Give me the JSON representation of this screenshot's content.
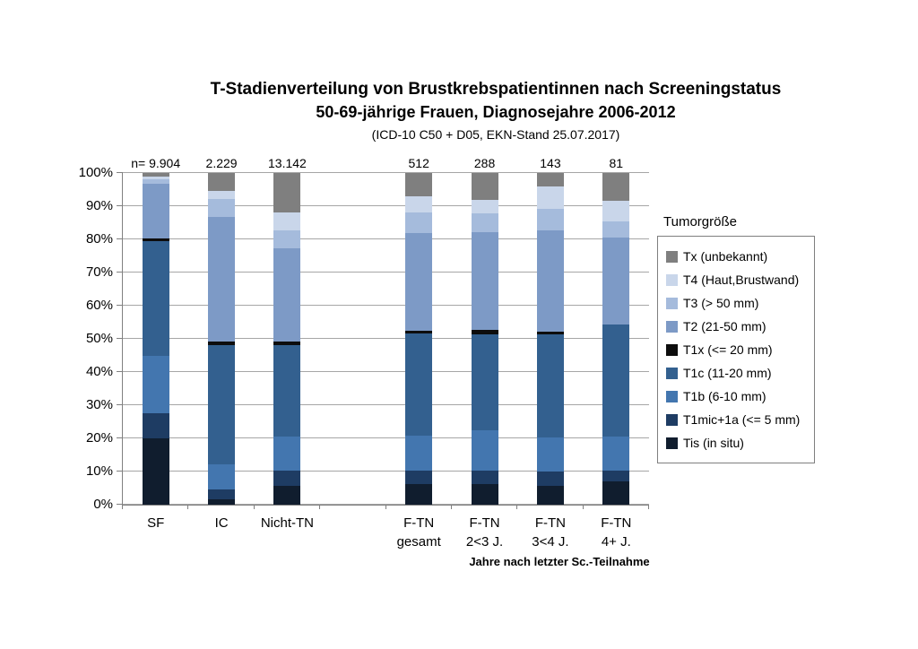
{
  "title": {
    "line1": "T-Stadienverteilung  von Brustkrebspatientinnen nach Screeningstatus",
    "line2": "50-69-jährige Frauen, Diagnosejahre 2006-2012",
    "line3": "(ICD-10 C50 + D05, EKN-Stand 25.07.2017)"
  },
  "chart_data": {
    "type": "bar",
    "stacked": true,
    "value_unit": "percent",
    "ylim": [
      0,
      100
    ],
    "ytick_step": 10,
    "ytick_suffix": "%",
    "grid": true,
    "legend_position": "right",
    "legend_title": "Tumorgröße",
    "xaxis_note": "Jahre nach letzter Sc.-Teilnahme",
    "categories": [
      {
        "label": "SF",
        "sublabel": "",
        "n_label": "n= 9.904",
        "spacer": false
      },
      {
        "label": "IC",
        "sublabel": "",
        "n_label": "2.229",
        "spacer": false
      },
      {
        "label": "Nicht-TN",
        "sublabel": "",
        "n_label": "13.142",
        "spacer": false
      },
      {
        "label": "",
        "sublabel": "",
        "n_label": "",
        "spacer": true
      },
      {
        "label": "F-TN",
        "sublabel": "gesamt",
        "n_label": "512",
        "spacer": false
      },
      {
        "label": "F-TN",
        "sublabel": "2<3 J.",
        "n_label": "288",
        "spacer": false
      },
      {
        "label": "F-TN",
        "sublabel": "3<4 J.",
        "n_label": "143",
        "spacer": false
      },
      {
        "label": "F-TN",
        "sublabel": "4+ J.",
        "n_label": "81",
        "spacer": false
      }
    ],
    "series_bottom_to_top": [
      {
        "name": "Tis (in situ)",
        "color": "#101D2E",
        "values": [
          20.0,
          1.6,
          5.8,
          6.2,
          6.2,
          5.8,
          7.0
        ]
      },
      {
        "name": "T1mic+1a (<= 5 mm)",
        "color": "#1E3C63",
        "values": [
          7.5,
          3.0,
          4.5,
          4.0,
          4.1,
          4.3,
          3.3
        ]
      },
      {
        "name": "T1b (6-10 mm)",
        "color": "#4376AF",
        "values": [
          17.5,
          7.6,
          10.3,
          10.6,
          12.1,
          10.1,
          10.3
        ]
      },
      {
        "name": "T1c (11-20 mm)",
        "color": "#33608F",
        "values": [
          34.5,
          36.0,
          27.6,
          30.7,
          29.0,
          31.1,
          33.8
        ]
      },
      {
        "name": "T1x (<= 20 mm)",
        "color": "#0D0D0D",
        "values": [
          0.8,
          1.0,
          0.9,
          0.9,
          1.2,
          0.9,
          0.0
        ]
      },
      {
        "name": "T2 (21-50 mm)",
        "color": "#7D9AC6",
        "values": [
          16.4,
          37.7,
          28.3,
          29.5,
          29.6,
          30.6,
          26.1
        ]
      },
      {
        "name": "T3 (> 50 mm)",
        "color": "#A5BBDC",
        "values": [
          1.4,
          5.3,
          5.2,
          6.1,
          5.6,
          6.3,
          5.0
        ]
      },
      {
        "name": "T4 (Haut,Brustwand)",
        "color": "#C9D6EA",
        "values": [
          0.9,
          2.3,
          5.6,
          4.9,
          4.0,
          6.8,
          6.2
        ]
      },
      {
        "name": "Tx (unbekannt)",
        "color": "#7F7F7F",
        "values": [
          1.0,
          5.5,
          11.8,
          7.1,
          8.2,
          4.1,
          8.3
        ]
      }
    ]
  },
  "colors": {
    "grid": "#A6A6A6",
    "axis": "#808080",
    "text": "#000000",
    "background": "#FFFFFF"
  }
}
